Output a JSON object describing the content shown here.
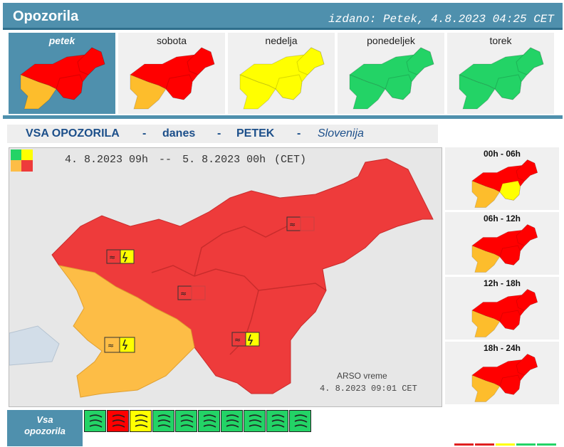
{
  "header": {
    "title": "Opozorila",
    "issued": "izdano: Petek, 4.8.2023 04:25 CET"
  },
  "days": [
    {
      "label": "petek",
      "active": true,
      "west": "#fdbd2c",
      "main": "#ff0000",
      "east": "#ff0000",
      "ne": "#ff0000"
    },
    {
      "label": "sobota",
      "active": false,
      "west": "#fdbd2c",
      "main": "#ff0000",
      "east": "#ff0000",
      "ne": "#ff0000"
    },
    {
      "label": "nedelja",
      "active": false,
      "west": "#ffff00",
      "main": "#ffff00",
      "east": "#ffff00",
      "ne": "#ffff00"
    },
    {
      "label": "ponedeljek",
      "active": false,
      "west": "#23d366",
      "main": "#23d366",
      "east": "#23d366",
      "ne": "#23d366"
    },
    {
      "label": "torek",
      "active": false,
      "west": "#23d366",
      "main": "#23d366",
      "east": "#23d366",
      "ne": "#23d366"
    }
  ],
  "section": {
    "vsa": "VSA OPOZORILA",
    "dash1": "-",
    "danes": "danes",
    "dash2": "-",
    "day": "PETEK",
    "dash3": "-",
    "region": "Slovenija"
  },
  "bigmap": {
    "date_from": "4. 8.2023  09h",
    "sep": "--",
    "date_to": "5. 8.2023  00h",
    "tz": "(CET)",
    "source": "ARSO vreme",
    "timestamp": "4. 8.2023  09:01 CET",
    "colors": {
      "orange": "#fdbd46",
      "red": "#ee3b3b"
    }
  },
  "periods": [
    {
      "label": "00h - 06h",
      "west": "#fdbd2c",
      "main": "#ff0000",
      "east": "#ffff00",
      "ne": "#ff0000"
    },
    {
      "label": "06h - 12h",
      "west": "#fdbd2c",
      "main": "#ff0000",
      "east": "#ff0000",
      "ne": "#ff0000"
    },
    {
      "label": "12h - 18h",
      "west": "#fdbd2c",
      "main": "#ff0000",
      "east": "#ff0000",
      "ne": "#ff0000"
    },
    {
      "label": "18h - 24h",
      "west": "#fdbd2c",
      "main": "#ff0000",
      "east": "#ff0000",
      "ne": "#ff0000"
    }
  ],
  "bottom": {
    "label_line1": "Vsa",
    "label_line2": "opozorila",
    "icons": [
      {
        "name": "wind-icon",
        "bg": "#23d366"
      },
      {
        "name": "rain-icon",
        "bg": "#ff0000"
      },
      {
        "name": "thunderstorm-icon",
        "bg": "#ffff00"
      },
      {
        "name": "snow-icon",
        "bg": "#23d366"
      },
      {
        "name": "snow-ice-icon",
        "bg": "#23d366"
      },
      {
        "name": "heat-icon",
        "bg": "#23d366"
      },
      {
        "name": "cold-icon",
        "bg": "#23d366"
      },
      {
        "name": "fire-icon",
        "bg": "#23d366"
      },
      {
        "name": "coastal-icon",
        "bg": "#23d366"
      },
      {
        "name": "flood-icon",
        "bg": "#23d366"
      }
    ],
    "swatches": [
      "#e02020",
      "#e02020",
      "#ffff00",
      "#23d366",
      "#23d366"
    ]
  }
}
